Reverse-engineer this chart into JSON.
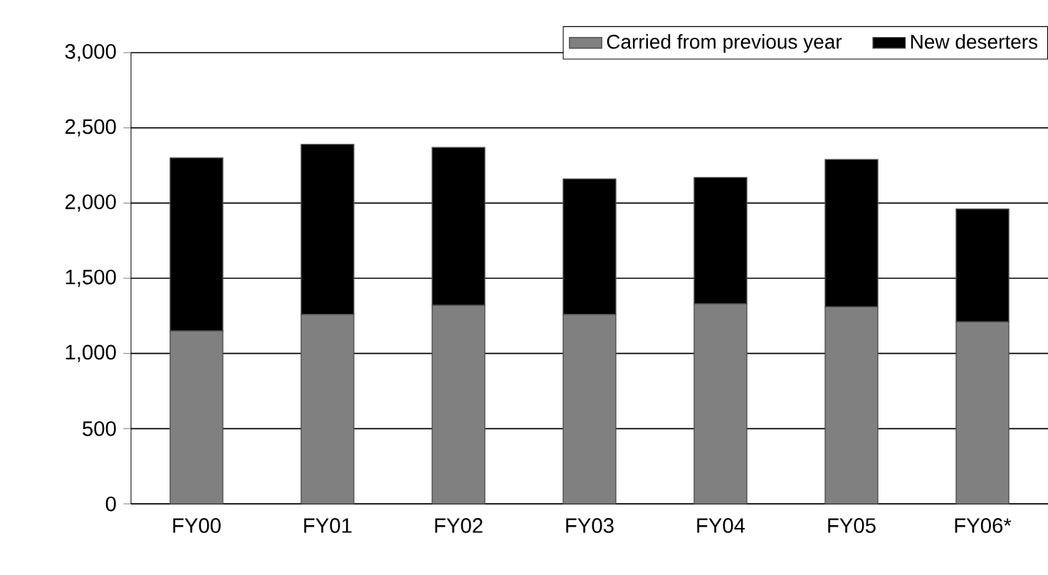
{
  "chart_data": {
    "type": "bar",
    "stacked": true,
    "categories": [
      "FY00",
      "FY01",
      "FY02",
      "FY03",
      "FY04",
      "FY05",
      "FY06*"
    ],
    "series": [
      {
        "name": "Carried from previous year",
        "color": "#808080",
        "values": [
          1150,
          1260,
          1320,
          1260,
          1330,
          1310,
          1210
        ]
      },
      {
        "name": "New deserters",
        "color": "#000000",
        "values": [
          1150,
          1130,
          1050,
          900,
          840,
          980,
          750
        ]
      }
    ],
    "ylim": [
      0,
      3000
    ],
    "yticks": [
      0,
      500,
      {
        "value": 1000,
        "label": "1,000"
      },
      {
        "value": 1500,
        "label": "1,500"
      },
      {
        "value": 2000,
        "label": "2,000"
      },
      {
        "value": 2500,
        "label": "2,500"
      },
      {
        "value": 3000,
        "label": "3,000"
      }
    ],
    "grid": "y",
    "legend": "top right"
  }
}
